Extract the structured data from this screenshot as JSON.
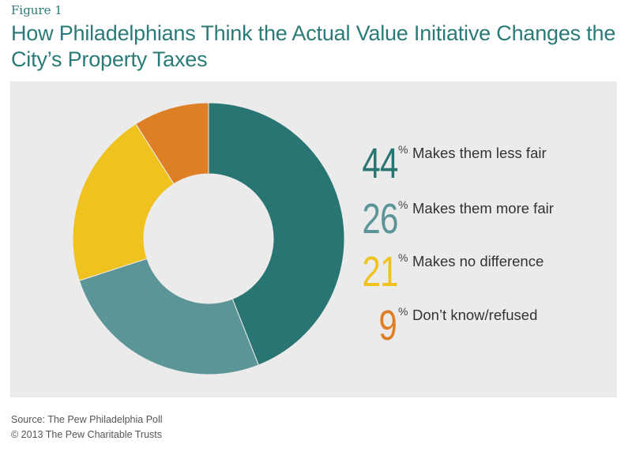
{
  "figure_label": "Figure 1",
  "title": "How Philadelphians Think the Actual Value Initiative Changes the City’s Property Taxes",
  "source_line": "Source: The Pew Philadelphia Poll",
  "copyright_line": "© 2013 The Pew Charitable Trusts",
  "chart_data": {
    "type": "pie",
    "style": "donut",
    "background": "#ebebeb",
    "categories": [
      "Makes them less fair",
      "Makes them more fair",
      "Makes no difference",
      "Don’t know/refused"
    ],
    "values": [
      44,
      26,
      21,
      9
    ],
    "value_suffix": "%",
    "colors": [
      "#287573",
      "#5b9598",
      "#f0c21f",
      "#df7f25"
    ],
    "legend_placement": "right"
  }
}
